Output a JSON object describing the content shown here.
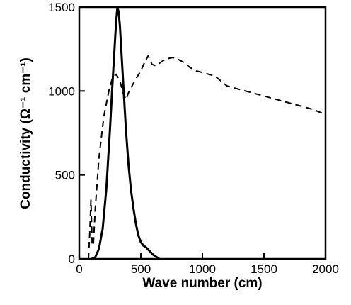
{
  "chart_data": {
    "type": "line",
    "xlabel": "Wave number (cm)",
    "ylabel": "Conductivity (Ω⁻¹ cm⁻¹)",
    "xlim": [
      0,
      2000
    ],
    "ylim": [
      0,
      1500
    ],
    "x_ticks": [
      0,
      500,
      1000,
      1500,
      2000
    ],
    "y_ticks": [
      0,
      500,
      1000,
      1500
    ],
    "grid": false,
    "series": [
      {
        "style": "solid",
        "x": [
          100,
          130,
          160,
          190,
          220,
          250,
          270,
          290,
          300,
          310,
          320,
          330,
          340,
          360,
          380,
          400,
          420,
          440,
          460,
          480,
          500,
          520,
          540,
          560,
          580,
          600,
          630,
          650
        ],
        "y": [
          0,
          10,
          60,
          180,
          420,
          780,
          1050,
          1300,
          1420,
          1500,
          1470,
          1390,
          1260,
          1010,
          760,
          560,
          410,
          300,
          210,
          140,
          100,
          80,
          70,
          55,
          40,
          25,
          10,
          0
        ]
      },
      {
        "style": "dashed",
        "x": [
          75,
          85,
          95,
          105,
          115,
          130,
          160,
          200,
          240,
          270,
          300,
          330,
          360,
          380,
          400,
          450,
          500,
          530,
          560,
          590,
          620,
          660,
          700,
          760,
          800,
          850,
          900,
          950,
          1000,
          1100,
          1150,
          1200,
          1300,
          1400,
          1500,
          1600,
          1700,
          1800,
          1900,
          2000
        ],
        "y": [
          0,
          150,
          350,
          80,
          90,
          300,
          600,
          850,
          1000,
          1080,
          1100,
          1060,
          980,
          950,
          990,
          1060,
          1120,
          1170,
          1210,
          1160,
          1150,
          1170,
          1190,
          1200,
          1190,
          1170,
          1140,
          1120,
          1110,
          1090,
          1060,
          1030,
          1010,
          990,
          970,
          950,
          930,
          910,
          890,
          860
        ]
      }
    ]
  }
}
